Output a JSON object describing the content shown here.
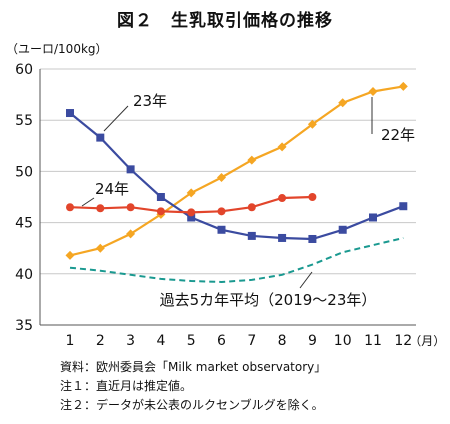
{
  "chart_data": {
    "type": "line",
    "title": "図２　生乳取引価格の推移",
    "ylabel": "（ユーロ/100kg）",
    "x_unit": "（月）",
    "x": [
      1,
      2,
      3,
      4,
      5,
      6,
      7,
      8,
      9,
      10,
      11,
      12
    ],
    "ylim": [
      35,
      60
    ],
    "yticks": [
      35,
      40,
      45,
      50,
      55,
      60
    ],
    "grid": "horizontal",
    "series": [
      {
        "name": "22年",
        "color": "#F5A623",
        "marker": "diamond",
        "dash": false,
        "values": [
          41.8,
          42.5,
          43.9,
          45.8,
          47.9,
          49.4,
          51.1,
          52.4,
          54.6,
          56.7,
          57.8,
          58.3
        ]
      },
      {
        "name": "23年",
        "color": "#3B4BA0",
        "marker": "square",
        "dash": false,
        "values": [
          55.7,
          53.3,
          50.2,
          47.5,
          45.5,
          44.3,
          43.7,
          43.5,
          43.4,
          44.3,
          45.5,
          46.6
        ]
      },
      {
        "name": "24年",
        "color": "#E2452B",
        "marker": "circle",
        "dash": false,
        "values": [
          46.5,
          46.4,
          46.5,
          46.1,
          46.0,
          46.1,
          46.5,
          47.4,
          47.5,
          null,
          null,
          null
        ]
      },
      {
        "name": "過去5カ年平均（2019～23年）",
        "color": "#1A9990",
        "marker": "none",
        "dash": true,
        "values": [
          40.6,
          40.3,
          39.9,
          39.5,
          39.3,
          39.2,
          39.4,
          39.9,
          40.9,
          42.1,
          42.8,
          43.5
        ]
      }
    ],
    "annotations": [
      "23年",
      "22年",
      "24年",
      "過去5カ年平均（2019～23年）"
    ]
  },
  "notes": [
    "資料：欧州委員会「Milk market observatory」",
    "注１：直近月は推定値。",
    "注２：データが未公表のルクセンブルグを除く。"
  ]
}
